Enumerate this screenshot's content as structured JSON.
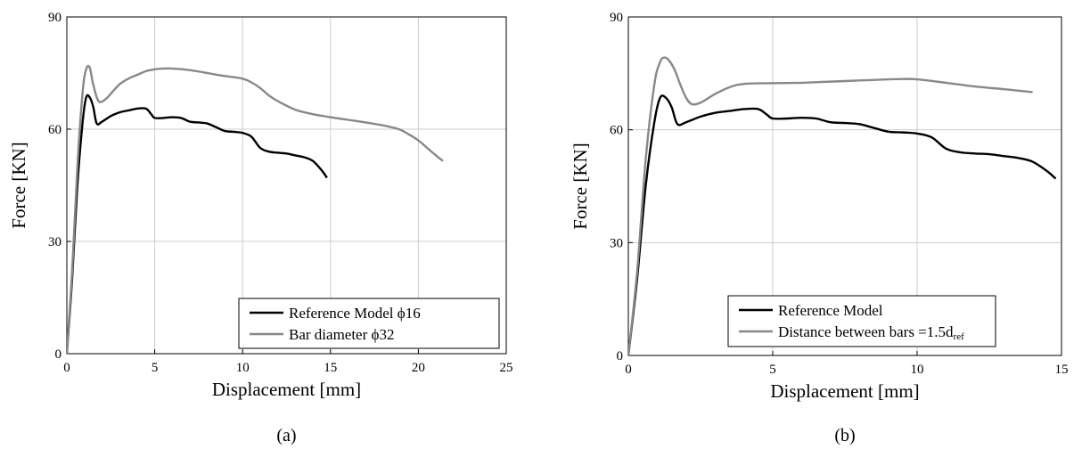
{
  "chart_data": [
    {
      "type": "line",
      "caption": "(a)",
      "xlabel": "Displacement [mm]",
      "ylabel": "Force [KN]",
      "xlim": [
        0,
        25
      ],
      "ylim": [
        0,
        90
      ],
      "xticks": [
        0,
        5,
        10,
        15,
        20,
        25
      ],
      "yticks": [
        0,
        30,
        60,
        90
      ],
      "grid": true,
      "legend_position": "bottom-right",
      "series": [
        {
          "name": "Reference Model ϕ16",
          "color": "#000000",
          "x": [
            0,
            0.3,
            0.6,
            0.9,
            1.1,
            1.3,
            1.5,
            1.7,
            2.0,
            2.5,
            3.0,
            3.5,
            4.0,
            4.5,
            4.8,
            5.0,
            5.5,
            6.0,
            6.5,
            7.0,
            7.5,
            8.0,
            8.5,
            9.0,
            9.5,
            10.0,
            10.5,
            11.0,
            11.5,
            12.0,
            12.5,
            13.0,
            13.5,
            14.0,
            14.5,
            14.8
          ],
          "y": [
            0,
            20,
            45,
            62,
            68.5,
            68.5,
            66,
            61.5,
            62,
            63.5,
            64.5,
            65,
            65.5,
            65.5,
            64,
            63,
            63,
            63.2,
            63,
            62,
            61.8,
            61.5,
            60.5,
            59.5,
            59.3,
            59,
            58,
            55,
            54,
            53.7,
            53.5,
            53,
            52.5,
            51.5,
            49,
            47
          ]
        },
        {
          "name": "Bar diameter ϕ32",
          "color": "#888888",
          "x": [
            0,
            0.3,
            0.6,
            0.9,
            1.1,
            1.3,
            1.5,
            1.8,
            2.2,
            2.6,
            3.0,
            3.5,
            4.0,
            4.5,
            5.0,
            5.5,
            6.0,
            7.0,
            8.0,
            9.0,
            10.0,
            10.5,
            11.0,
            11.5,
            12.0,
            13.0,
            14.0,
            15.0,
            16.0,
            17.0,
            18.0,
            18.5,
            19.0,
            19.5,
            20.0,
            20.5,
            21.0,
            21.4
          ],
          "y": [
            0,
            22,
            50,
            70,
            76,
            76.5,
            72,
            67.5,
            68,
            70,
            72,
            73.5,
            74.5,
            75.5,
            76,
            76.2,
            76.2,
            75.8,
            75,
            74.2,
            73.5,
            72.5,
            71,
            69,
            67.5,
            65.2,
            64,
            63.2,
            62.5,
            61.8,
            61,
            60.5,
            59.8,
            58.5,
            57,
            55,
            53,
            51.5
          ]
        }
      ]
    },
    {
      "type": "line",
      "caption": "(b)",
      "xlabel": "Displacement [mm]",
      "ylabel": "Force [KN]",
      "xlim": [
        0,
        15
      ],
      "ylim": [
        0,
        90
      ],
      "xticks": [
        0,
        5,
        10,
        15
      ],
      "yticks": [
        0,
        30,
        60,
        90
      ],
      "grid": true,
      "legend_position": "bottom-right",
      "series": [
        {
          "name": "Reference Model",
          "color": "#000000",
          "x": [
            0,
            0.3,
            0.6,
            0.9,
            1.1,
            1.3,
            1.5,
            1.7,
            2.0,
            2.5,
            3.0,
            3.5,
            4.0,
            4.5,
            4.8,
            5.0,
            5.5,
            6.0,
            6.5,
            7.0,
            7.5,
            8.0,
            8.5,
            9.0,
            9.5,
            10.0,
            10.5,
            11.0,
            11.5,
            12.0,
            12.5,
            13.0,
            13.5,
            14.0,
            14.5,
            14.8
          ],
          "y": [
            0,
            20,
            45,
            62,
            68.5,
            68.5,
            66,
            61.5,
            62,
            63.5,
            64.5,
            65,
            65.5,
            65.5,
            64,
            63,
            63,
            63.2,
            63,
            62,
            61.8,
            61.5,
            60.5,
            59.5,
            59.3,
            59,
            58,
            55,
            54,
            53.7,
            53.5,
            53,
            52.5,
            51.5,
            49,
            47
          ]
        },
        {
          "name": "Distance between bars =1.5d",
          "name_subscript": "ref",
          "color": "#888888",
          "x": [
            0,
            0.3,
            0.6,
            0.9,
            1.1,
            1.25,
            1.4,
            1.6,
            1.8,
            2.0,
            2.2,
            2.5,
            3.0,
            3.5,
            4.0,
            5.0,
            6.0,
            7.0,
            8.0,
            9.0,
            9.5,
            10.0,
            11.0,
            12.0,
            13.0,
            14.0
          ],
          "y": [
            0,
            22,
            52,
            72,
            78,
            79.2,
            78.5,
            76,
            72,
            68.5,
            66.8,
            67.2,
            69.5,
            71.3,
            72.2,
            72.4,
            72.5,
            72.8,
            73.1,
            73.4,
            73.5,
            73.4,
            72.5,
            71.5,
            70.8,
            70
          ]
        }
      ]
    }
  ],
  "colors": {
    "reference": "#000000",
    "variant": "#888888",
    "grid": "#cccccc"
  }
}
